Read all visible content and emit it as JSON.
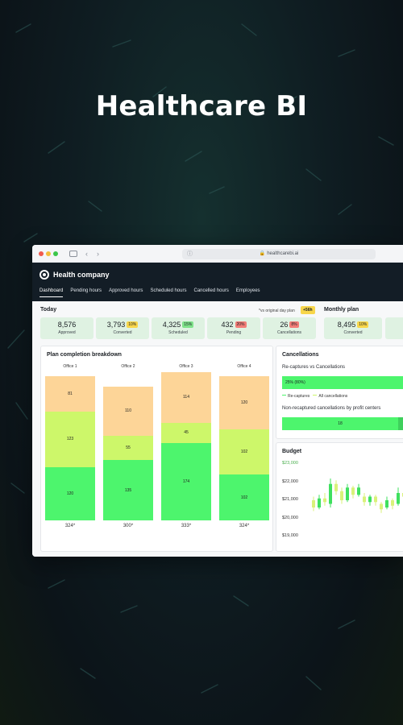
{
  "hero": {
    "title": "Healthcare BI"
  },
  "browser": {
    "url": "healthcarebi.ai"
  },
  "app": {
    "company": "Health company",
    "tabs": [
      {
        "label": "Dashboard",
        "active": true
      },
      {
        "label": "Pending hours"
      },
      {
        "label": "Approved hours"
      },
      {
        "label": "Scheduled hours"
      },
      {
        "label": "Cancelled hours"
      },
      {
        "label": "Employees"
      }
    ]
  },
  "today": {
    "title": "Today",
    "vs_note": "*vs original day plan",
    "vs_badge": "+56h",
    "kpis": [
      {
        "value": "8,576",
        "label": "Approved"
      },
      {
        "value": "3,793",
        "label": "Converted",
        "badge": "10%",
        "badge_color": "yellow"
      },
      {
        "value": "4,325",
        "label": "Scheduled",
        "badge": "15%",
        "badge_color": "green"
      },
      {
        "value": "432",
        "label": "Pending",
        "badge": "20%",
        "badge_color": "red"
      },
      {
        "value": "26",
        "label": "Cancellations",
        "badge": "8%",
        "badge_color": "red"
      }
    ]
  },
  "monthly": {
    "title": "Monthly plan",
    "kpis": [
      {
        "value": "8,495",
        "label": "Converted",
        "badge": "10%",
        "badge_color": "yellow"
      }
    ]
  },
  "plan": {
    "title": "Plan completion breakdown",
    "chart_data": {
      "type": "bar",
      "stacked": true,
      "categories": [
        "Office 1",
        "Office 2",
        "Office 3",
        "Office 4"
      ],
      "series": [
        {
          "values": [
            120,
            135,
            174,
            102
          ],
          "color": "#4df56d"
        },
        {
          "values": [
            123,
            55,
            45,
            102
          ],
          "color": "#cdf76a"
        },
        {
          "values": [
            81,
            110,
            114,
            120
          ],
          "color": "#fdd598"
        }
      ],
      "totals": [
        "324*",
        "300*",
        "333*",
        "324*"
      ]
    }
  },
  "cancellations": {
    "title": "Cancellations",
    "subtitle": "Re-captures vs Cancellations",
    "bar_label": "25% (80%)",
    "legend": [
      "Re-captures",
      "All cancellations"
    ],
    "subtitle2": "Non-recaptured cancellations by profit centers",
    "bar2_label": "18",
    "bar2_fraction": 0.9
  },
  "budget": {
    "title": "Budget",
    "chart_data": {
      "type": "candlestick",
      "y_ticks": [
        "$23,000",
        "$22,000",
        "$21,000",
        "$20,000",
        "$19,000"
      ],
      "ylim": [
        19000,
        23000
      ],
      "candles": [
        {
          "o": 21000,
          "c": 20600,
          "h": 21200,
          "l": 20400
        },
        {
          "o": 20600,
          "c": 21100,
          "h": 21300,
          "l": 20500
        },
        {
          "o": 21100,
          "c": 20900,
          "h": 21400,
          "l": 20700
        },
        {
          "o": 20800,
          "c": 21900,
          "h": 22200,
          "l": 20600
        },
        {
          "o": 21900,
          "c": 21500,
          "h": 22100,
          "l": 21300
        },
        {
          "o": 21500,
          "c": 21000,
          "h": 21700,
          "l": 20800
        },
        {
          "o": 21000,
          "c": 21700,
          "h": 21900,
          "l": 20900
        },
        {
          "o": 21700,
          "c": 21300,
          "h": 21800,
          "l": 21100
        },
        {
          "o": 21300,
          "c": 21700,
          "h": 21900,
          "l": 21200
        },
        {
          "o": 21200,
          "c": 20900,
          "h": 21400,
          "l": 20700
        },
        {
          "o": 20900,
          "c": 21200,
          "h": 21300,
          "l": 20700
        },
        {
          "o": 21200,
          "c": 20900,
          "h": 21300,
          "l": 20700
        },
        {
          "o": 20800,
          "c": 20500,
          "h": 20900,
          "l": 20300
        },
        {
          "o": 20600,
          "c": 21000,
          "h": 21200,
          "l": 20500
        },
        {
          "o": 21000,
          "c": 20700,
          "h": 21100,
          "l": 20500
        },
        {
          "o": 20800,
          "c": 21400,
          "h": 21700,
          "l": 20700
        },
        {
          "o": 21400,
          "c": 21200,
          "h": 21500,
          "l": 21000
        },
        {
          "o": 21300,
          "c": 21700,
          "h": 22000,
          "l": 21100
        }
      ]
    }
  }
}
